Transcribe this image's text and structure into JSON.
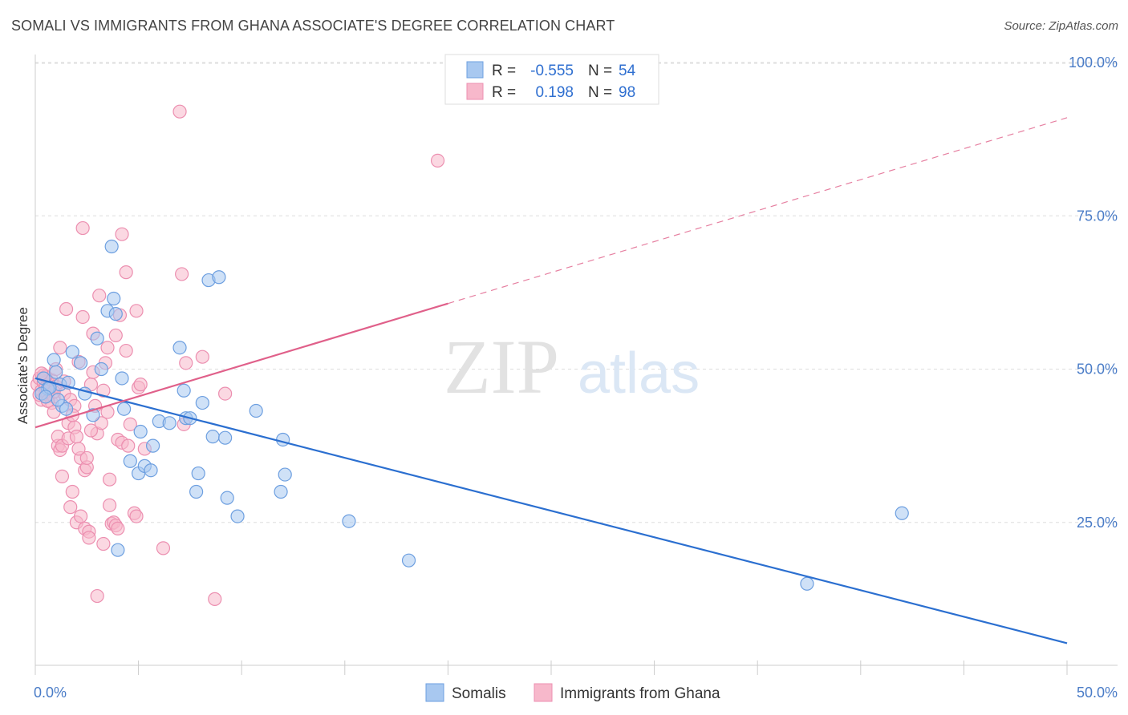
{
  "title": "SOMALI VS IMMIGRANTS FROM GHANA ASSOCIATE'S DEGREE CORRELATION CHART",
  "source": "Source: ZipAtlas.com",
  "watermark": {
    "zip": "ZIP",
    "atlas": "atlas"
  },
  "colors": {
    "somali_fill": "#a8c8f0",
    "somali_stroke": "#6d9fe0",
    "somali_line": "#2b6fd0",
    "ghana_fill": "#f7b8cb",
    "ghana_stroke": "#ec8fb0",
    "ghana_line": "#e0608a",
    "grid": "#dddddd",
    "axis_text": "#4a7cc7"
  },
  "legend": {
    "rows": [
      {
        "r_label": "R =",
        "r_value": "-0.555",
        "n_label": "N =",
        "n_value": "54"
      },
      {
        "r_label": "R =",
        "r_value": "0.198",
        "n_label": "N =",
        "n_value": "98"
      }
    ]
  },
  "bottom_legend": [
    "Somalis",
    "Immigrants from Ghana"
  ],
  "chart_data": {
    "type": "scatter",
    "title": "SOMALI VS IMMIGRANTS FROM GHANA ASSOCIATE'S DEGREE CORRELATION CHART",
    "xlabel": "",
    "ylabel": "Associate's Degree",
    "xlim": [
      0,
      50
    ],
    "ylim": [
      0,
      100
    ],
    "x_tick_labels": [
      "0.0%",
      "50.0%"
    ],
    "y_tick_labels": [
      "100.0%",
      "75.0%",
      "50.0%",
      "25.0%"
    ],
    "y_tick_values": [
      100,
      75,
      50,
      25
    ],
    "grid": true,
    "legend_position": "top-center",
    "series": [
      {
        "name": "Somalis",
        "trend": {
          "x": [
            0,
            50
          ],
          "y": [
            48.5,
            5.3
          ],
          "dashed_from_x": null
        },
        "points": [
          [
            0.4,
            48.5
          ],
          [
            0.6,
            46.8
          ],
          [
            0.9,
            51.5
          ],
          [
            1.0,
            49.5
          ],
          [
            1.2,
            47.5
          ],
          [
            1.3,
            44.0
          ],
          [
            1.5,
            43.5
          ],
          [
            1.8,
            52.8
          ],
          [
            2.2,
            51.0
          ],
          [
            2.4,
            46.0
          ],
          [
            2.8,
            42.5
          ],
          [
            3.0,
            55.0
          ],
          [
            3.2,
            50.0
          ],
          [
            3.5,
            59.5
          ],
          [
            3.8,
            61.5
          ],
          [
            3.7,
            70.0
          ],
          [
            3.9,
            59.0
          ],
          [
            4.2,
            48.5
          ],
          [
            4.0,
            20.5
          ],
          [
            4.3,
            43.5
          ],
          [
            4.6,
            35.0
          ],
          [
            5.0,
            33.0
          ],
          [
            5.1,
            39.8
          ],
          [
            5.3,
            34.2
          ],
          [
            5.6,
            33.5
          ],
          [
            5.7,
            37.5
          ],
          [
            6.0,
            41.5
          ],
          [
            6.5,
            41.2
          ],
          [
            7.0,
            53.5
          ],
          [
            7.2,
            46.5
          ],
          [
            7.3,
            42.0
          ],
          [
            7.5,
            42.0
          ],
          [
            7.8,
            30.0
          ],
          [
            7.9,
            33.0
          ],
          [
            8.1,
            44.5
          ],
          [
            8.4,
            64.5
          ],
          [
            8.6,
            39.0
          ],
          [
            8.9,
            65.0
          ],
          [
            9.2,
            38.8
          ],
          [
            9.3,
            29.0
          ],
          [
            9.8,
            26.0
          ],
          [
            10.7,
            43.2
          ],
          [
            12.0,
            38.5
          ],
          [
            12.1,
            32.8
          ],
          [
            11.9,
            30.0
          ],
          [
            15.2,
            25.2
          ],
          [
            18.1,
            18.8
          ],
          [
            42.0,
            26.5
          ],
          [
            37.4,
            15.0
          ],
          [
            0.3,
            46.0
          ],
          [
            0.7,
            47.0
          ],
          [
            1.1,
            45.0
          ],
          [
            1.6,
            47.8
          ],
          [
            0.5,
            45.5
          ]
        ]
      },
      {
        "name": "Immigrants from Ghana",
        "trend": {
          "x": [
            0,
            50
          ],
          "y": [
            40.5,
            91.0
          ],
          "dashed_from_x": 20
        },
        "points": [
          [
            0.1,
            47.5
          ],
          [
            0.2,
            48.5
          ],
          [
            0.3,
            46.5
          ],
          [
            0.3,
            45.0
          ],
          [
            0.4,
            47.8
          ],
          [
            0.4,
            49.0
          ],
          [
            0.5,
            46.2
          ],
          [
            0.5,
            47.0
          ],
          [
            0.6,
            48.0
          ],
          [
            0.6,
            45.8
          ],
          [
            0.7,
            46.8
          ],
          [
            0.7,
            47.5
          ],
          [
            0.8,
            48.2
          ],
          [
            0.8,
            44.5
          ],
          [
            0.9,
            43.0
          ],
          [
            0.9,
            45.5
          ],
          [
            1.0,
            47.2
          ],
          [
            1.0,
            50.0
          ],
          [
            1.1,
            37.5
          ],
          [
            1.1,
            39.0
          ],
          [
            1.2,
            36.8
          ],
          [
            1.2,
            53.5
          ],
          [
            1.3,
            37.5
          ],
          [
            1.3,
            32.5
          ],
          [
            1.4,
            46.0
          ],
          [
            1.5,
            59.8
          ],
          [
            1.6,
            41.2
          ],
          [
            1.6,
            38.7
          ],
          [
            1.7,
            45.0
          ],
          [
            1.7,
            27.5
          ],
          [
            1.8,
            30.0
          ],
          [
            1.9,
            44.0
          ],
          [
            1.9,
            40.5
          ],
          [
            2.0,
            39.0
          ],
          [
            2.0,
            25.0
          ],
          [
            2.1,
            51.2
          ],
          [
            2.2,
            26.0
          ],
          [
            2.2,
            35.5
          ],
          [
            2.3,
            58.5
          ],
          [
            2.3,
            73.0
          ],
          [
            2.4,
            33.5
          ],
          [
            2.4,
            24.0
          ],
          [
            2.5,
            34.0
          ],
          [
            2.5,
            35.5
          ],
          [
            2.6,
            23.5
          ],
          [
            2.6,
            22.5
          ],
          [
            2.7,
            47.5
          ],
          [
            2.8,
            49.5
          ],
          [
            2.8,
            55.8
          ],
          [
            2.9,
            44.0
          ],
          [
            3.0,
            13.0
          ],
          [
            3.0,
            39.5
          ],
          [
            3.1,
            62.0
          ],
          [
            3.2,
            41.2
          ],
          [
            3.3,
            21.5
          ],
          [
            3.4,
            51.0
          ],
          [
            3.5,
            43.0
          ],
          [
            3.5,
            53.5
          ],
          [
            3.6,
            27.8
          ],
          [
            3.6,
            32.0
          ],
          [
            3.7,
            24.8
          ],
          [
            3.8,
            25.0
          ],
          [
            3.9,
            24.5
          ],
          [
            3.9,
            55.5
          ],
          [
            4.0,
            24.0
          ],
          [
            4.0,
            38.5
          ],
          [
            4.1,
            58.8
          ],
          [
            4.2,
            72.0
          ],
          [
            4.2,
            38.0
          ],
          [
            4.4,
            53.0
          ],
          [
            4.4,
            65.8
          ],
          [
            4.5,
            37.5
          ],
          [
            4.6,
            41.0
          ],
          [
            4.8,
            26.5
          ],
          [
            4.9,
            26.0
          ],
          [
            4.9,
            59.5
          ],
          [
            5.0,
            47.0
          ],
          [
            5.1,
            47.5
          ],
          [
            5.3,
            37.0
          ],
          [
            6.2,
            20.8
          ],
          [
            7.0,
            92.0
          ],
          [
            7.1,
            65.5
          ],
          [
            7.2,
            41.0
          ],
          [
            7.3,
            51.0
          ],
          [
            8.1,
            52.0
          ],
          [
            8.7,
            12.5
          ],
          [
            9.2,
            46.0
          ],
          [
            19.5,
            84.0
          ],
          [
            0.2,
            45.8
          ],
          [
            0.5,
            48.8
          ],
          [
            0.9,
            46.3
          ],
          [
            1.4,
            48.0
          ],
          [
            0.3,
            49.3
          ],
          [
            0.6,
            44.8
          ],
          [
            1.8,
            42.5
          ],
          [
            2.1,
            37.0
          ],
          [
            2.7,
            40.0
          ],
          [
            3.3,
            46.5
          ]
        ]
      }
    ]
  }
}
